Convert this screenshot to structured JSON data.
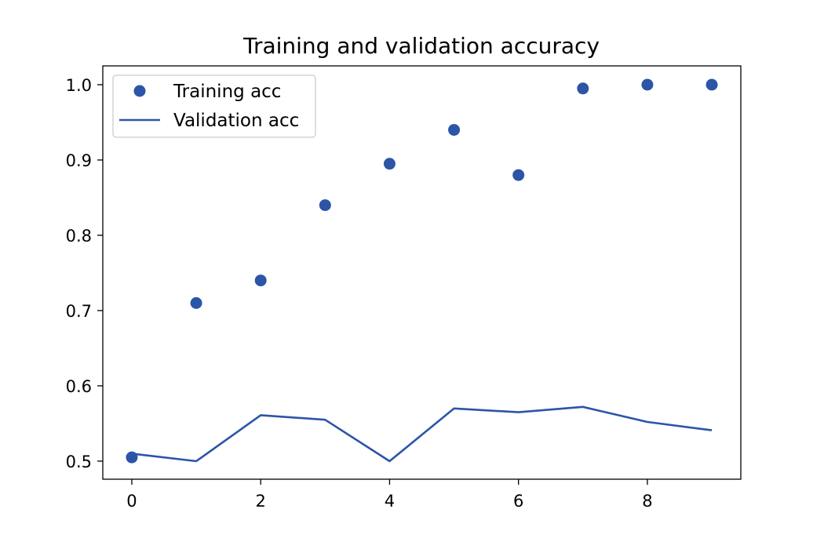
{
  "chart_data": {
    "type": "line",
    "title": "Training and validation accuracy",
    "xlabel": "",
    "ylabel": "",
    "x": [
      0,
      1,
      2,
      3,
      4,
      5,
      6,
      7,
      8,
      9
    ],
    "series": [
      {
        "name": "Training acc",
        "style": "markers",
        "color": "#2c55a8",
        "values": [
          0.505,
          0.71,
          0.74,
          0.84,
          0.895,
          0.94,
          0.88,
          0.995,
          1.0,
          1.0
        ]
      },
      {
        "name": "Validation acc",
        "style": "line",
        "color": "#2c55a8",
        "values": [
          0.51,
          0.5,
          0.561,
          0.555,
          0.5,
          0.57,
          0.565,
          0.572,
          0.552,
          0.541
        ]
      }
    ],
    "xlim": [
      -0.45,
      9.45
    ],
    "ylim": [
      0.476,
      1.025
    ],
    "x_ticks": [
      0,
      2,
      4,
      6,
      8
    ],
    "x_tick_labels": [
      "0",
      "2",
      "4",
      "6",
      "8"
    ],
    "y_ticks": [
      0.5,
      0.6,
      0.7,
      0.8,
      0.9,
      1.0
    ],
    "y_tick_labels": [
      "0.5",
      "0.6",
      "0.7",
      "0.8",
      "0.9",
      "1.0"
    ],
    "grid": false,
    "legend_position": "top-left"
  }
}
